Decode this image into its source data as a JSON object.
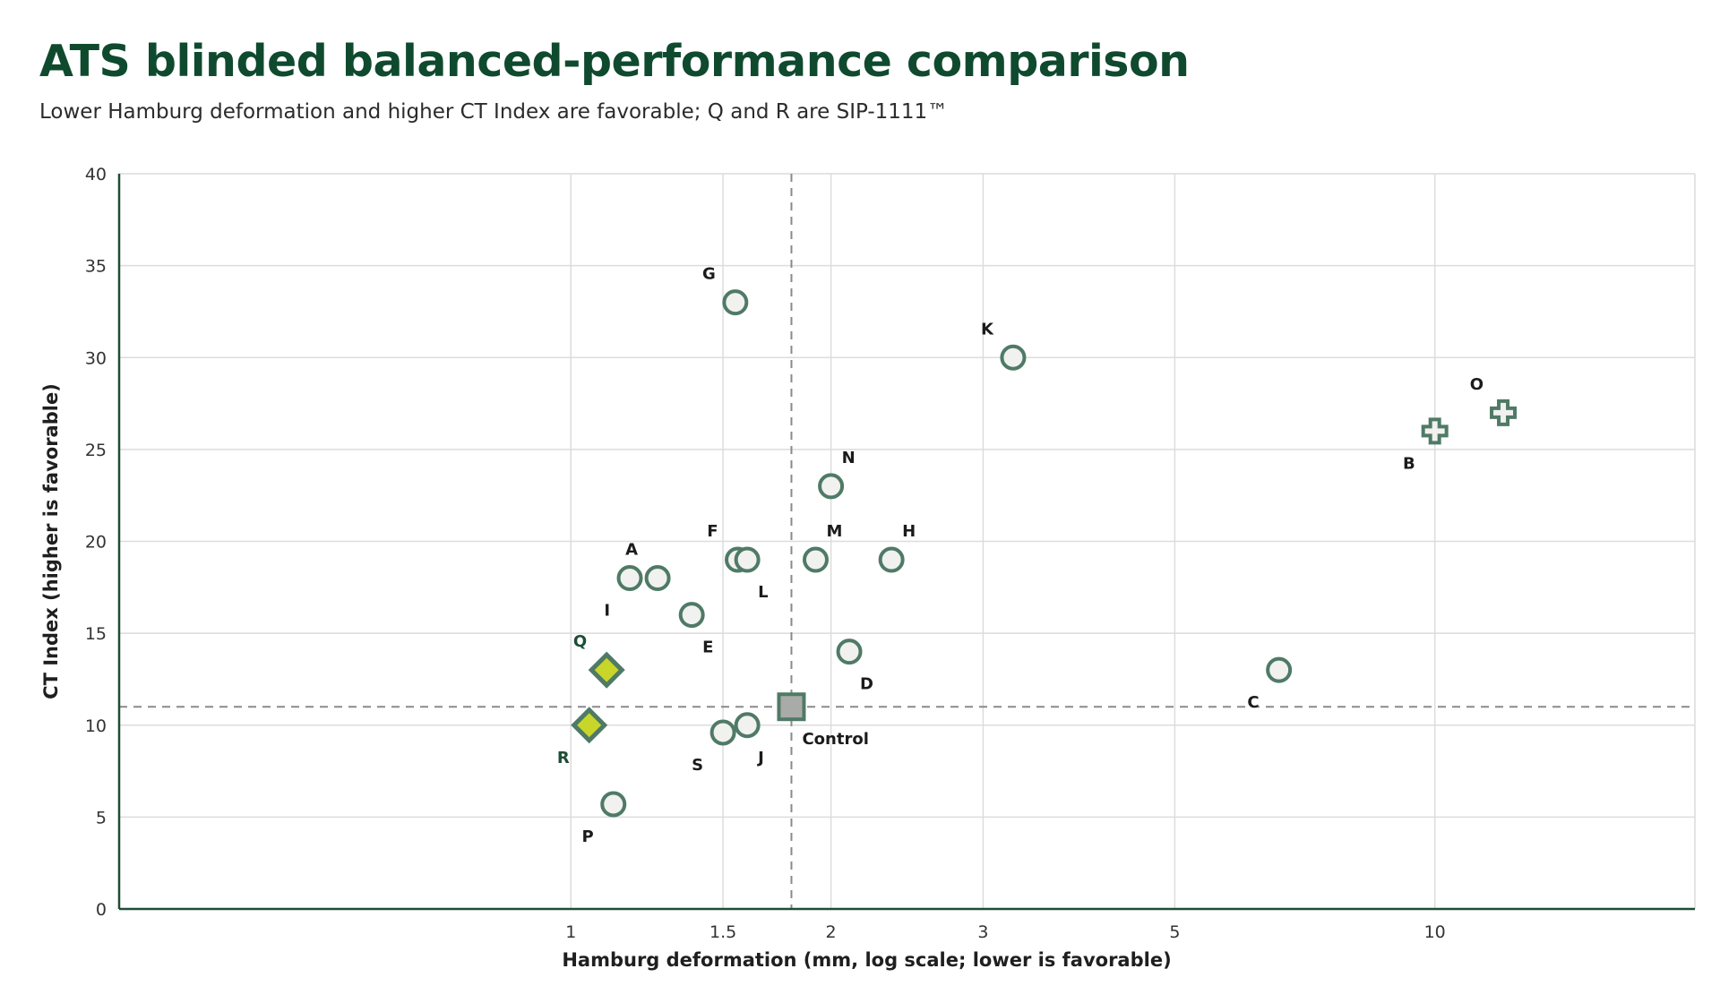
{
  "header": {
    "title": "ATS blinded balanced-performance comparison",
    "subtitle": "Lower Hamburg deformation and higher CT Index are favorable; Q and R are SIP-1111™"
  },
  "colors": {
    "marker_stroke": "#4f7a66",
    "marker_fill": "#f1f1ef",
    "highlight_fill": "#c8d62a",
    "control_fill": "#a9aba8",
    "grid": "#dcdcdc",
    "axis": "#1f4d36",
    "reference_line": "#8a8a8a"
  },
  "chart_data": {
    "type": "scatter",
    "title": "ATS blinded balanced-performance comparison",
    "xlabel": "Hamburg deformation (mm, log scale; lower is favorable)",
    "ylabel": "CT Index (higher is favorable)",
    "x_scale": "log",
    "xlim": [
      0.3,
      20
    ],
    "ylim": [
      0,
      40
    ],
    "x_ticks": [
      1,
      1.5,
      2,
      3,
      5,
      10
    ],
    "x_tick_labels": [
      "1",
      "1.5",
      "2",
      "3",
      "5",
      "10"
    ],
    "y_ticks": [
      0,
      5,
      10,
      15,
      20,
      25,
      30,
      35,
      40
    ],
    "grid": true,
    "reference_lines": {
      "x": 1.8,
      "y": 11,
      "style": "dashed"
    },
    "points": [
      {
        "label": "G",
        "x": 1.55,
        "y": 33,
        "marker": "circle",
        "label_pos": "above-left"
      },
      {
        "label": "K",
        "x": 3.25,
        "y": 30,
        "marker": "circle",
        "label_pos": "above-left"
      },
      {
        "label": "O",
        "x": 12,
        "y": 27,
        "marker": "cross",
        "label_pos": "above-left"
      },
      {
        "label": "B",
        "x": 10,
        "y": 26,
        "marker": "cross",
        "label_pos": "below-left"
      },
      {
        "label": "N",
        "x": 2,
        "y": 23,
        "marker": "circle",
        "label_pos": "above-right"
      },
      {
        "label": "F",
        "x": 1.56,
        "y": 19,
        "marker": "circle",
        "label_pos": "above-left"
      },
      {
        "label": "L",
        "x": 1.6,
        "y": 19,
        "marker": "circle",
        "label_pos": "below-right"
      },
      {
        "label": "M",
        "x": 1.92,
        "y": 19,
        "marker": "circle",
        "label_pos": "above-right"
      },
      {
        "label": "H",
        "x": 2.35,
        "y": 19,
        "marker": "circle",
        "label_pos": "above-right"
      },
      {
        "label": "A",
        "x": 1.26,
        "y": 18,
        "marker": "circle",
        "label_pos": "above-left"
      },
      {
        "label": "I",
        "x": 1.17,
        "y": 18,
        "marker": "circle",
        "label_pos": "below-left"
      },
      {
        "label": "E",
        "x": 1.38,
        "y": 16,
        "marker": "circle",
        "label_pos": "below-right"
      },
      {
        "label": "D",
        "x": 2.1,
        "y": 14,
        "marker": "circle",
        "label_pos": "below-right"
      },
      {
        "label": "C",
        "x": 6.6,
        "y": 13,
        "marker": "circle",
        "label_pos": "below-left"
      },
      {
        "label": "Q",
        "x": 1.1,
        "y": 13,
        "marker": "diamond",
        "label_pos": "above-left"
      },
      {
        "label": "R",
        "x": 1.05,
        "y": 10,
        "marker": "diamond",
        "label_pos": "below-left"
      },
      {
        "label": "Control",
        "x": 1.8,
        "y": 11,
        "marker": "square",
        "label_pos": "below-right"
      },
      {
        "label": "S",
        "x": 1.5,
        "y": 9.6,
        "marker": "circle",
        "label_pos": "below-left"
      },
      {
        "label": "J",
        "x": 1.6,
        "y": 10,
        "marker": "circle",
        "label_pos": "below-right"
      },
      {
        "label": "P",
        "x": 1.12,
        "y": 5.7,
        "marker": "circle",
        "label_pos": "below-left"
      }
    ]
  }
}
